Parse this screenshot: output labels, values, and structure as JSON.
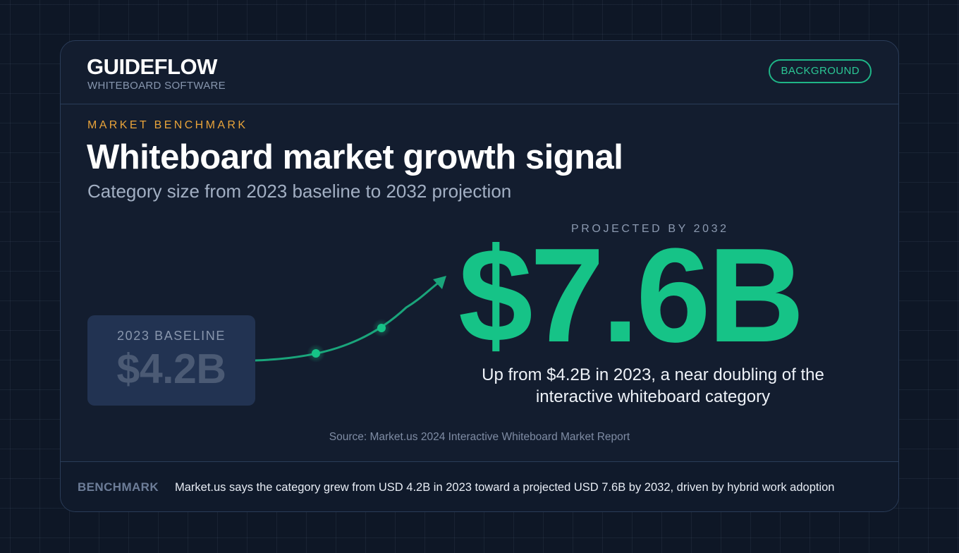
{
  "brand": {
    "name": "GUIDEFLOW",
    "subtitle": "WHITEBOARD SOFTWARE"
  },
  "badge": {
    "label": "BACKGROUND"
  },
  "header": {
    "eyebrow": "MARKET BENCHMARK",
    "title": "Whiteboard market growth signal",
    "subtitle": "Category size from 2023 baseline to 2032 projection"
  },
  "baseline": {
    "label": "2023 BASELINE",
    "value": "$4.2B"
  },
  "projection": {
    "label": "PROJECTED BY 2032",
    "value": "$7.6B",
    "description": "Up from $4.2B in 2023, a near doubling of the interactive whiteboard category"
  },
  "source": "Source: Market.us 2024 Interactive Whiteboard Market Report",
  "footer": {
    "tag": "BENCHMARK",
    "text": "Market.us says the category grew from USD 4.2B in 2023 toward a projected USD 7.6B by 2032, driven by hybrid work adoption"
  },
  "colors": {
    "accent_green": "#16c387",
    "accent_orange": "#e8a33a",
    "background": "#0e1726",
    "card": "#131d2f"
  }
}
